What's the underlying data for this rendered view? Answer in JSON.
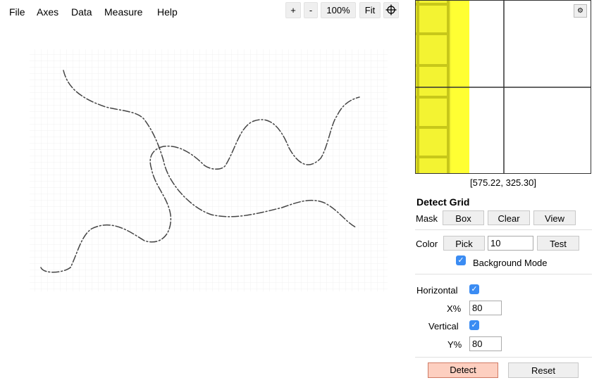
{
  "menu": {
    "file": "File",
    "axes": "Axes",
    "data": "Data",
    "measure": "Measure",
    "help": "Help"
  },
  "toolbar": {
    "zoom_in": "+",
    "zoom_out": "-",
    "zoom_level": "100%",
    "fit": "Fit",
    "crosshair_icon": "crosshair-icon"
  },
  "zoom_panel": {
    "coords": "[575.22, 325.30]",
    "settings_icon": "gear-icon"
  },
  "detect_grid": {
    "title": "Detect Grid",
    "mask_label": "Mask",
    "box": "Box",
    "clear": "Clear",
    "view": "View",
    "color_label": "Color",
    "pick": "Pick",
    "color_value": "10",
    "test": "Test",
    "background_mode": "Background Mode",
    "background_mode_checked": true,
    "horizontal": "Horizontal",
    "horizontal_checked": true,
    "x_pct_label": "X%",
    "x_pct_value": "80",
    "vertical": "Vertical",
    "vertical_checked": true,
    "y_pct_label": "Y%",
    "y_pct_value": "80",
    "detect": "Detect",
    "reset": "Reset"
  },
  "colors": {
    "accent": "#3b8cf3",
    "detect_bg": "#fdcfc0",
    "highlight": "#ffff33",
    "curve": "#444444"
  }
}
